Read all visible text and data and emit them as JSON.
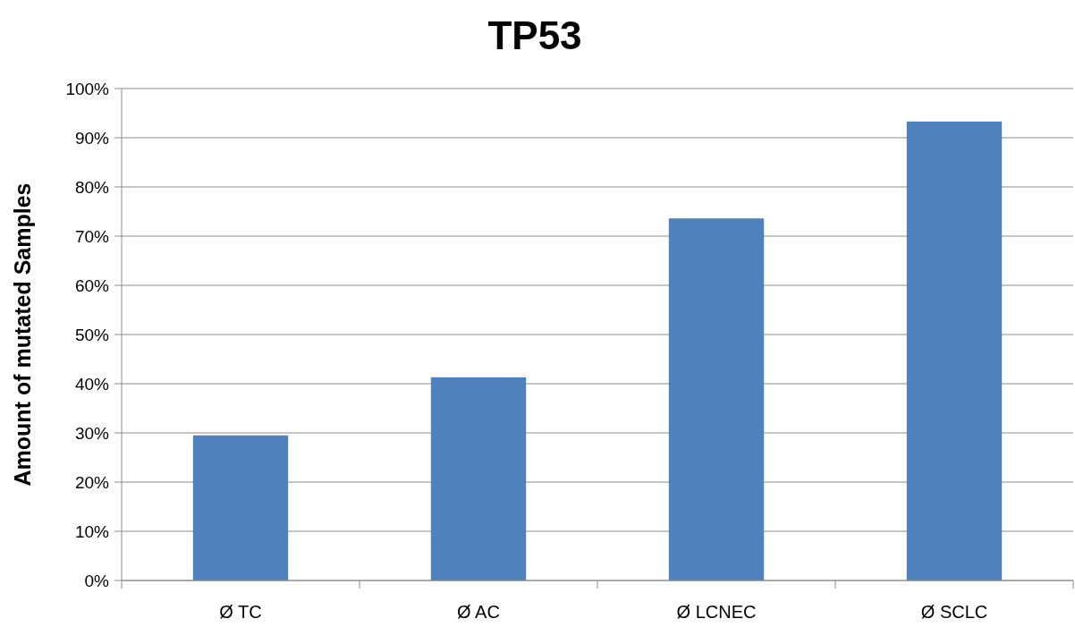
{
  "chart_data": {
    "type": "bar",
    "title": "TP53",
    "ylabel": "Amount of mutated Samples",
    "categories": [
      "Ø TC",
      "Ø AC",
      "Ø LCNEC",
      "Ø SCLC"
    ],
    "values": [
      29.5,
      41.3,
      73.6,
      93.3
    ],
    "color": "#4f81bd",
    "ylim": [
      0,
      100
    ],
    "yticks": [
      {
        "value": 0,
        "label": "0%"
      },
      {
        "value": 10,
        "label": "10%"
      },
      {
        "value": 20,
        "label": "20%"
      },
      {
        "value": 30,
        "label": "30%"
      },
      {
        "value": 40,
        "label": "40%"
      },
      {
        "value": 50,
        "label": "50%"
      },
      {
        "value": 60,
        "label": "60%"
      },
      {
        "value": 70,
        "label": "70%"
      },
      {
        "value": 80,
        "label": "80%"
      },
      {
        "value": 90,
        "label": "90%"
      },
      {
        "value": 100,
        "label": "100%"
      }
    ],
    "grid": "y"
  }
}
